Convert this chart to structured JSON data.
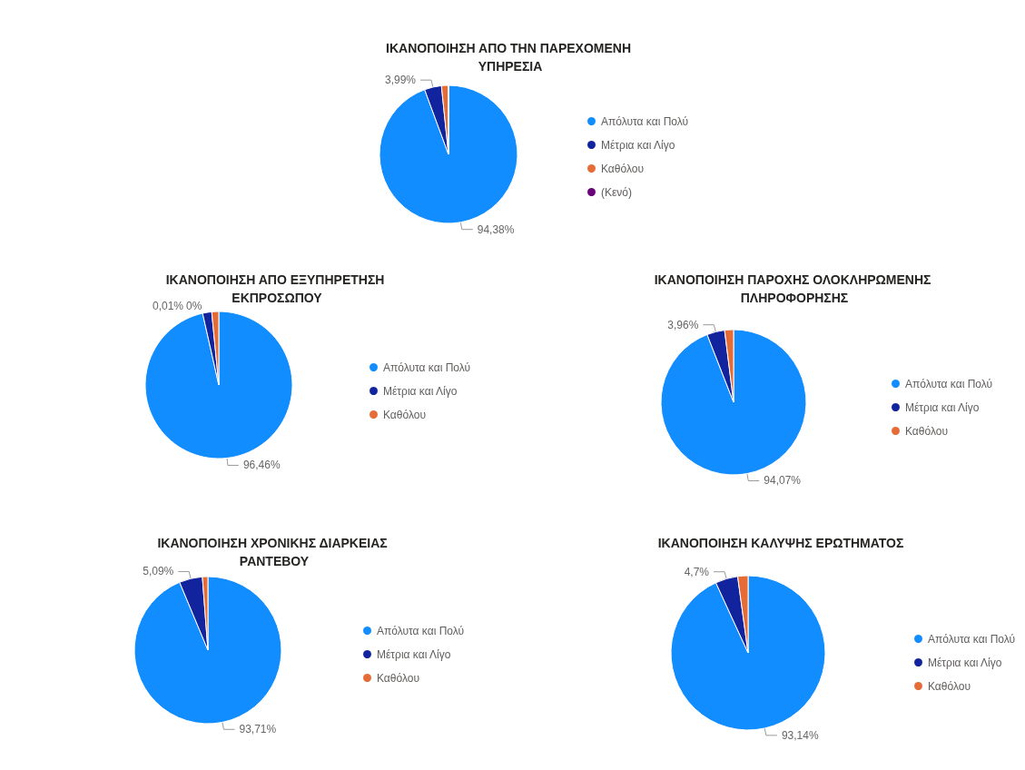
{
  "chart_data": [
    {
      "type": "pie",
      "title": "ΙΚΑΝΟΠΟΙΗΣΗ ΑΠΟ ΤΗΝ ΠΑΡΕΧΟΜΕΝΗ ΥΠΗΡΕΣΙΑ",
      "categories": [
        "Απόλυτα και Πολύ",
        "Μέτρια και Λίγο",
        "Καθόλου",
        "(Κενό)"
      ],
      "values": [
        94.38,
        3.99,
        1.63,
        0
      ],
      "value_labels": [
        "94,38%",
        "3,99%",
        null,
        null
      ],
      "colors": [
        "#118dff",
        "#12239e",
        "#e66c37",
        "#6b007b"
      ],
      "legend": "right"
    },
    {
      "type": "pie",
      "title": "ΙΚΑΝΟΠΟΙΗΣΗ ΑΠΟ ΕΞΥΠΗΡΕΤΗΣΗ ΕΚΠΡΟΣΩΠΟΥ",
      "categories": [
        "Απόλυτα και Πολύ",
        "Μέτρια και Λίγο",
        "Καθόλου"
      ],
      "values": [
        96.46,
        2.0,
        1.54
      ],
      "value_labels": [
        "96,46%",
        null,
        null
      ],
      "annotations": [
        "0,01%",
        "0%"
      ],
      "colors": [
        "#118dff",
        "#12239e",
        "#e66c37"
      ],
      "legend": "right"
    },
    {
      "type": "pie",
      "title": "ΙΚΑΝΟΠΟΙΗΣΗ ΠΑΡΟΧΗΣ ΟΛΟΚΛΗΡΩΜΕΝΗΣ ΠΛΗΡΟΦΟΡΗΣΗΣ",
      "categories": [
        "Απόλυτα και Πολύ",
        "Μέτρια και Λίγο",
        "Καθόλου"
      ],
      "values": [
        94.07,
        3.96,
        1.97
      ],
      "value_labels": [
        "94,07%",
        "3,96%",
        null
      ],
      "colors": [
        "#118dff",
        "#12239e",
        "#e66c37"
      ],
      "legend": "right"
    },
    {
      "type": "pie",
      "title": "ΙΚΑΝΟΠΟΙΗΣΗ ΧΡΟΝΙΚΗΣ ΔΙΑΡΚΕΙΑΣ ΡΑΝΤΕΒΟΥ",
      "categories": [
        "Απόλυτα και Πολύ",
        "Μέτρια και Λίγο",
        "Καθόλου"
      ],
      "values": [
        93.71,
        5.09,
        1.2
      ],
      "value_labels": [
        "93,71%",
        "5,09%",
        null
      ],
      "colors": [
        "#118dff",
        "#12239e",
        "#e66c37"
      ],
      "legend": "right"
    },
    {
      "type": "pie",
      "title": "ΙΚΑΝΟΠΟΙΗΣΗ ΚΑΛΥΨΗΣ ΕΡΩΤΗΜΑΤΟΣ",
      "categories": [
        "Απόλυτα και Πολύ",
        "Μέτρια και Λίγο",
        "Καθόλου"
      ],
      "values": [
        93.14,
        4.7,
        2.16
      ],
      "value_labels": [
        "93,14%",
        "4,7%",
        null
      ],
      "colors": [
        "#118dff",
        "#12239e",
        "#e66c37"
      ],
      "legend": "right"
    }
  ]
}
